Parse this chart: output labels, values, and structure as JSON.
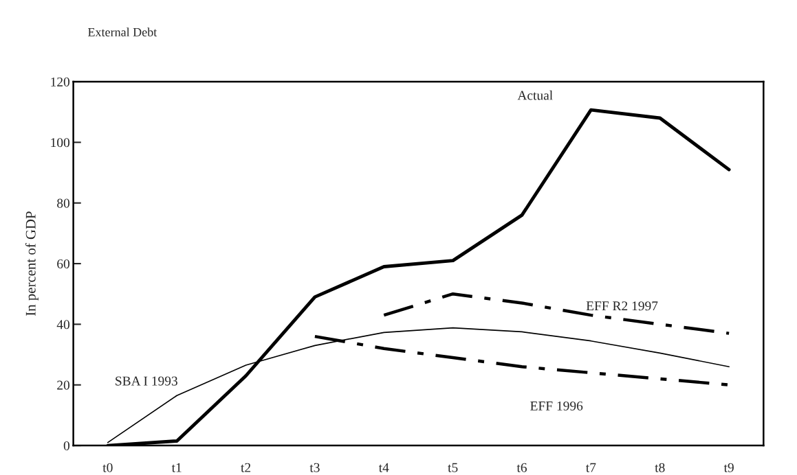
{
  "chart_data": {
    "type": "line",
    "title": "External Debt",
    "ylabel": "In percent of GDP",
    "categories": [
      "t0",
      "t1",
      "t2",
      "t3",
      "t4",
      "t5",
      "t6",
      "t7",
      "t8",
      "t9"
    ],
    "series": [
      {
        "name": "Actual",
        "color": "#000000",
        "line_style": "solid",
        "values": [
          0,
          1.5,
          23,
          49,
          59,
          61,
          76,
          110.7,
          108,
          91
        ]
      },
      {
        "name": "SBA I 1993",
        "color": "#000000",
        "line_style": "solid",
        "values": [
          1,
          16.5,
          26.5,
          33,
          37.3,
          38.8,
          37.5,
          34.5,
          30.5,
          26
        ]
      },
      {
        "name": "EFF 1996",
        "color": "#000000",
        "line_style": "dashed",
        "values": [
          null,
          null,
          null,
          36,
          32,
          29,
          26,
          24,
          22,
          20
        ]
      },
      {
        "name": "EFF R2 1997",
        "color": "#000000",
        "line_style": "dashed",
        "values": [
          null,
          null,
          null,
          null,
          43,
          50,
          47,
          43,
          40,
          37
        ]
      }
    ],
    "ylim": [
      0,
      120
    ],
    "yticks": [
      0,
      20,
      40,
      60,
      80,
      100,
      120
    ],
    "grid": false,
    "legend": false,
    "marker": "none"
  }
}
